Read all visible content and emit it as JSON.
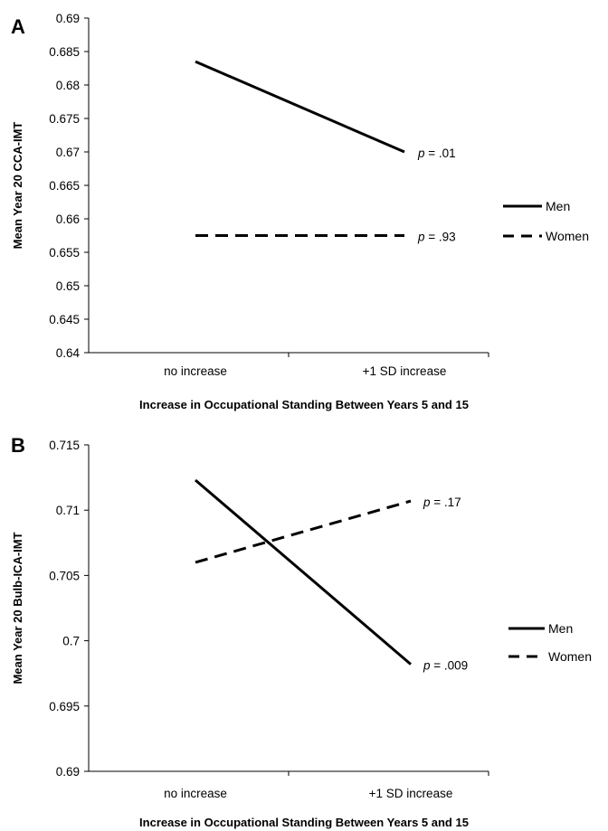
{
  "chart_data": [
    {
      "panel": "A",
      "type": "line",
      "categories": [
        "no increase",
        "+1 SD increase"
      ],
      "xlabel": "Increase in Occupational Standing Between Years 5 and 15",
      "ylabel": "Mean Year 20 CCA-IMT",
      "ylim": [
        0.64,
        0.69
      ],
      "yticks": [
        "0.64",
        "0.645",
        "0.65",
        "0.655",
        "0.66",
        "0.665",
        "0.67",
        "0.675",
        "0.68",
        "0.685",
        "0.69"
      ],
      "legend_position": "right",
      "series": [
        {
          "name": "Men",
          "style": "solid",
          "values": [
            0.6835,
            0.67
          ],
          "p_prefix": "p",
          "p_value": "= .01"
        },
        {
          "name": "Women",
          "style": "dashed",
          "values": [
            0.6575,
            0.6575
          ],
          "p_prefix": "p",
          "p_value": "= .93"
        }
      ]
    },
    {
      "panel": "B",
      "type": "line",
      "categories": [
        "no increase",
        "+1 SD increase"
      ],
      "xlabel": "Increase in Occupational Standing Between Years 5 and 15",
      "ylabel": "Mean Year 20 Bulb-ICA-IMT",
      "ylim": [
        0.69,
        0.715
      ],
      "yticks": [
        "0.69",
        "0.695",
        "0.7",
        "0.705",
        "0.71",
        "0.715"
      ],
      "legend_position": "right",
      "series": [
        {
          "name": "Men",
          "style": "solid",
          "values": [
            0.7123,
            0.6982
          ],
          "p_prefix": "p",
          "p_value": "= .009"
        },
        {
          "name": "Women",
          "style": "dashed",
          "values": [
            0.706,
            0.7107
          ],
          "p_prefix": "p",
          "p_value": "= .17"
        }
      ]
    }
  ]
}
